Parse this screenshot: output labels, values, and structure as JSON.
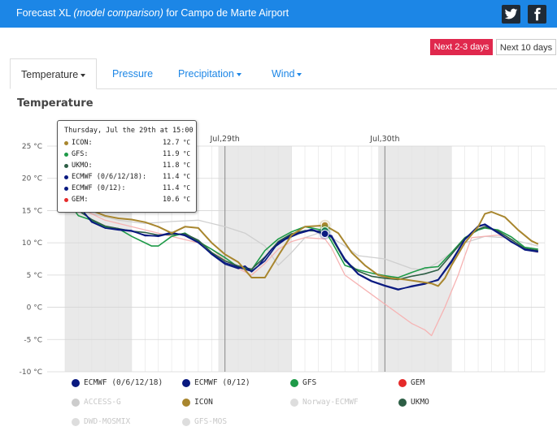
{
  "header": {
    "title_prefix": "Forecast XL ",
    "title_italic": "(model comparison)",
    "title_suffix": " for Campo de Marte Airport"
  },
  "range_buttons": [
    "Next 2-3 days",
    "Next 10 days"
  ],
  "tabs": [
    {
      "label": "Temperature",
      "dropdown": true,
      "active": true
    },
    {
      "label": "Pressure",
      "dropdown": false,
      "active": false
    },
    {
      "label": "Precipitation",
      "dropdown": true,
      "active": false
    },
    {
      "label": "Wind",
      "dropdown": true,
      "active": false
    }
  ],
  "chart_title": "Temperature",
  "tooltip": {
    "header": "Thursday, Jul the 29th at 15:00",
    "rows": [
      {
        "name": "ICON:",
        "value": "12.7",
        "unit": "°C",
        "color": "#a8862e"
      },
      {
        "name": "GFS:",
        "value": "11.9",
        "unit": "°C",
        "color": "#1e9a48"
      },
      {
        "name": "UKMO:",
        "value": "11.8",
        "unit": "°C",
        "color": "#2d5e45"
      },
      {
        "name": "ECMWF (0/6/12/18):",
        "value": "11.4",
        "unit": "°C",
        "color": "#0a1a80"
      },
      {
        "name": "ECMWF (0/12):",
        "value": "11.4",
        "unit": "°C",
        "color": "#0a1a80"
      },
      {
        "name": "GEM:",
        "value": "10.6",
        "unit": "°C",
        "color": "#e52a2a"
      }
    ]
  },
  "chart_data": {
    "type": "line",
    "title": "Temperature",
    "y_unit": "°C",
    "ylim": [
      -10,
      25
    ],
    "y_ticks": [
      "25 °C",
      "20 °C",
      "15 °C",
      "10 °C",
      "5 °C",
      "0 °C",
      "-5 °C",
      "-10 °C"
    ],
    "y_tick_values": [
      25,
      20,
      15,
      10,
      5,
      0,
      -5,
      -10
    ],
    "x_unit": "hours",
    "xlim": [
      0,
      72
    ],
    "x_ticks": [
      {
        "label": "Jul,29th",
        "x": 24
      },
      {
        "label": "Jul,30th",
        "x": 48
      }
    ],
    "hover_x": 39,
    "series": [
      {
        "name": "ECMWF (0/6/12/18)",
        "color": "#0a1a80",
        "width": 1.6,
        "visible": true,
        "points": [
          [
            0,
            17.5
          ],
          [
            2,
            15.7
          ],
          [
            4,
            13.3
          ],
          [
            6,
            12.3
          ],
          [
            8,
            12
          ],
          [
            10,
            11.8
          ],
          [
            12,
            11.2
          ],
          [
            14,
            11
          ],
          [
            16,
            11.5
          ],
          [
            18,
            11.2
          ],
          [
            20,
            10.1
          ],
          [
            22,
            8.2
          ],
          [
            24,
            6.7
          ],
          [
            26,
            6
          ],
          [
            27,
            6.4
          ],
          [
            28,
            5.5
          ],
          [
            29,
            6.4
          ],
          [
            31,
            9
          ],
          [
            33,
            10.5
          ],
          [
            35,
            11.4
          ],
          [
            37,
            12
          ],
          [
            38,
            11.6
          ],
          [
            39,
            11.4
          ],
          [
            40,
            11.1
          ],
          [
            42,
            7.3
          ],
          [
            44,
            5.1
          ],
          [
            46,
            4
          ],
          [
            48,
            3.3
          ],
          [
            50,
            2.7
          ],
          [
            52,
            3.3
          ],
          [
            54,
            3.7
          ],
          [
            56,
            4.2
          ],
          [
            58,
            7
          ],
          [
            60,
            10.5
          ],
          [
            62,
            12.5
          ],
          [
            63,
            12.8
          ],
          [
            65,
            11.5
          ],
          [
            67,
            10.2
          ],
          [
            69,
            8.9
          ],
          [
            71,
            8.6
          ]
        ]
      },
      {
        "name": "ECMWF (0/12)",
        "color": "#0a1a80",
        "width": 1.6,
        "visible": true,
        "points": [
          [
            0,
            17.4
          ],
          [
            2,
            15.8
          ],
          [
            4,
            13.2
          ],
          [
            6,
            12.3
          ],
          [
            8,
            12.1
          ],
          [
            10,
            11.9
          ],
          [
            12,
            11.1
          ],
          [
            14,
            11.1
          ],
          [
            16,
            11.6
          ],
          [
            18,
            11.1
          ],
          [
            20,
            10
          ],
          [
            22,
            8.3
          ],
          [
            24,
            6.9
          ],
          [
            26,
            6.2
          ],
          [
            28,
            5.6
          ],
          [
            30,
            7.2
          ],
          [
            32,
            10
          ],
          [
            34,
            11.2
          ],
          [
            36,
            11.8
          ],
          [
            37,
            12.1
          ],
          [
            39,
            11.4
          ],
          [
            40,
            10.9
          ],
          [
            42,
            7.5
          ],
          [
            44,
            5.2
          ],
          [
            46,
            4.1
          ],
          [
            48,
            3.4
          ],
          [
            50,
            2.8
          ],
          [
            52,
            3.2
          ],
          [
            54,
            3.6
          ],
          [
            56,
            4.3
          ],
          [
            58,
            7.2
          ],
          [
            60,
            10.6
          ],
          [
            62,
            12.6
          ],
          [
            63,
            12.9
          ],
          [
            65,
            11.6
          ],
          [
            67,
            10.1
          ],
          [
            69,
            9
          ],
          [
            71,
            8.7
          ]
        ]
      },
      {
        "name": "GFS",
        "color": "#1e9a48",
        "width": 1.6,
        "visible": true,
        "points": [
          [
            0,
            17
          ],
          [
            2,
            14.2
          ],
          [
            4,
            13.5
          ],
          [
            6,
            12.5
          ],
          [
            8,
            12.2
          ],
          [
            10,
            11
          ],
          [
            12,
            10
          ],
          [
            13,
            9.5
          ],
          [
            14,
            9.5
          ],
          [
            16,
            11
          ],
          [
            18,
            11.5
          ],
          [
            20,
            10.2
          ],
          [
            22,
            9
          ],
          [
            24,
            7.7
          ],
          [
            26,
            6.2
          ],
          [
            28,
            5.8
          ],
          [
            30,
            8.8
          ],
          [
            32,
            10.6
          ],
          [
            34,
            11.7
          ],
          [
            36,
            12.5
          ],
          [
            39,
            11.9
          ],
          [
            40,
            10.2
          ],
          [
            42,
            6.5
          ],
          [
            44,
            5.8
          ],
          [
            46,
            5.3
          ],
          [
            48,
            4.9
          ],
          [
            50,
            4.6
          ],
          [
            52,
            5.4
          ],
          [
            54,
            6.1
          ],
          [
            56,
            6.3
          ],
          [
            58,
            8.5
          ],
          [
            60,
            10.8
          ],
          [
            62,
            12
          ],
          [
            63,
            12.3
          ],
          [
            65,
            12
          ],
          [
            67,
            10.9
          ],
          [
            69,
            9.3
          ],
          [
            71,
            9
          ]
        ]
      },
      {
        "name": "GEM",
        "color": "#f6b3b3",
        "width": 1.3,
        "visible": true,
        "points": [
          [
            0,
            16.8
          ],
          [
            2,
            15.5
          ],
          [
            4,
            14.5
          ],
          [
            6,
            13.5
          ],
          [
            8,
            13
          ],
          [
            10,
            12.5
          ],
          [
            12,
            12
          ],
          [
            14,
            11.5
          ],
          [
            16,
            11
          ],
          [
            18,
            10.5
          ],
          [
            20,
            10
          ],
          [
            22,
            9
          ],
          [
            24,
            7.3
          ],
          [
            26,
            6
          ],
          [
            28,
            5
          ],
          [
            30,
            6.8
          ],
          [
            32,
            9
          ],
          [
            34,
            10.2
          ],
          [
            36,
            10.8
          ],
          [
            39,
            10.6
          ],
          [
            40,
            9.2
          ],
          [
            42,
            5
          ],
          [
            44,
            3.5
          ],
          [
            46,
            2
          ],
          [
            48,
            0.5
          ],
          [
            50,
            -1
          ],
          [
            52,
            -2.5
          ],
          [
            54,
            -3.5
          ],
          [
            55,
            -4.4
          ],
          [
            57,
            0
          ],
          [
            59,
            5
          ],
          [
            60,
            8
          ],
          [
            61,
            10.8
          ],
          [
            63,
            11
          ],
          [
            65,
            11.2
          ],
          [
            67,
            10.5
          ],
          [
            69,
            9
          ],
          [
            71,
            8.5
          ]
        ]
      },
      {
        "name": "ACCESS-G",
        "color": "#cfcfcf",
        "width": 1.3,
        "visible": true,
        "points": [
          [
            0,
            16.5
          ],
          [
            4,
            14.5
          ],
          [
            8,
            13.5
          ],
          [
            12,
            13
          ],
          [
            16,
            13.3
          ],
          [
            20,
            13.5
          ],
          [
            24,
            12.5
          ],
          [
            27,
            11.5
          ],
          [
            30,
            9.5
          ],
          [
            32,
            6.5
          ],
          [
            34,
            8.5
          ],
          [
            36,
            10.8
          ],
          [
            38,
            11.5
          ],
          [
            40,
            10.8
          ],
          [
            42,
            9.5
          ],
          [
            44,
            8
          ],
          [
            48,
            7.5
          ],
          [
            52,
            6
          ],
          [
            54,
            5.8
          ],
          [
            56,
            7
          ],
          [
            58,
            8.5
          ],
          [
            60,
            10
          ],
          [
            63,
            11
          ],
          [
            66,
            10.8
          ],
          [
            69,
            10
          ],
          [
            71,
            9.5
          ]
        ]
      },
      {
        "name": "ICON",
        "color": "#a8862e",
        "width": 2,
        "visible": true,
        "points": [
          [
            0,
            17.5
          ],
          [
            2,
            16.2
          ],
          [
            4,
            15
          ],
          [
            6,
            14.2
          ],
          [
            8,
            13.8
          ],
          [
            10,
            13.6
          ],
          [
            12,
            13.2
          ],
          [
            14,
            12.5
          ],
          [
            16,
            11.5
          ],
          [
            18,
            12.5
          ],
          [
            20,
            12.3
          ],
          [
            22,
            10
          ],
          [
            24,
            8.2
          ],
          [
            26,
            7
          ],
          [
            28,
            4.6
          ],
          [
            30,
            4.6
          ],
          [
            32,
            8
          ],
          [
            34,
            11.2
          ],
          [
            36,
            12.5
          ],
          [
            39,
            12.7
          ],
          [
            41,
            11.5
          ],
          [
            43,
            8.5
          ],
          [
            45,
            6.5
          ],
          [
            47,
            5
          ],
          [
            49,
            4.5
          ],
          [
            51,
            4.3
          ],
          [
            53,
            4
          ],
          [
            55,
            3.7
          ],
          [
            56,
            3.3
          ],
          [
            57,
            4.5
          ],
          [
            58,
            6.5
          ],
          [
            60,
            10
          ],
          [
            62,
            12.5
          ],
          [
            63,
            14.5
          ],
          [
            64,
            14.8
          ],
          [
            66,
            14
          ],
          [
            68,
            12
          ],
          [
            70,
            10.3
          ],
          [
            71,
            9.8
          ]
        ]
      },
      {
        "name": "Norway-ECMWF",
        "color": "#dddddd",
        "width": 1.2,
        "visible": false,
        "points": []
      },
      {
        "name": "UKMO",
        "color": "#2d5e45",
        "width": 1.6,
        "visible": true,
        "points": [
          [
            0,
            17.2
          ],
          [
            2,
            15
          ],
          [
            4,
            13.6
          ],
          [
            6,
            12.6
          ],
          [
            8,
            12.2
          ],
          [
            10,
            11.8
          ],
          [
            12,
            11.6
          ],
          [
            14,
            11.2
          ],
          [
            16,
            11.3
          ],
          [
            18,
            11.4
          ],
          [
            20,
            10.4
          ],
          [
            22,
            8.5
          ],
          [
            24,
            7.2
          ],
          [
            26,
            6.4
          ],
          [
            28,
            5.9
          ],
          [
            30,
            7.8
          ],
          [
            32,
            10.2
          ],
          [
            34,
            11.4
          ],
          [
            36,
            11.9
          ],
          [
            39,
            11.8
          ],
          [
            40,
            10.8
          ],
          [
            42,
            7.2
          ],
          [
            44,
            5.6
          ],
          [
            46,
            4.8
          ],
          [
            48,
            4.5
          ],
          [
            50,
            4.3
          ],
          [
            52,
            4.8
          ],
          [
            54,
            5.2
          ],
          [
            56,
            5.8
          ],
          [
            58,
            8.2
          ],
          [
            60,
            10.7
          ],
          [
            62,
            12.1
          ],
          [
            63,
            12.5
          ],
          [
            65,
            11.8
          ],
          [
            67,
            10.5
          ],
          [
            69,
            9.1
          ],
          [
            71,
            8.8
          ]
        ]
      },
      {
        "name": "DWD-MOSMIX",
        "color": "#dddddd",
        "width": 1.2,
        "visible": false,
        "points": []
      },
      {
        "name": "GFS-MOS",
        "color": "#dddddd",
        "width": 1.2,
        "visible": false,
        "points": []
      }
    ]
  },
  "legend": [
    {
      "label": "ECMWF (0/6/12/18)",
      "color": "#0a1a80",
      "enabled": true
    },
    {
      "label": "ECMWF (0/12)",
      "color": "#0a1a80",
      "enabled": true
    },
    {
      "label": "GFS",
      "color": "#1e9a48",
      "enabled": true
    },
    {
      "label": "GEM",
      "color": "#e52a2a",
      "enabled": true
    },
    {
      "label": "ACCESS-G",
      "color": "#cccccc",
      "enabled": false
    },
    {
      "label": "ICON",
      "color": "#a8862e",
      "enabled": true
    },
    {
      "label": "Norway-ECMWF",
      "color": "#dddddd",
      "enabled": false
    },
    {
      "label": "UKMO",
      "color": "#2d5e45",
      "enabled": true
    },
    {
      "label": "DWD-MOSMIX",
      "color": "#dddddd",
      "enabled": false
    },
    {
      "label": "GFS-MOS",
      "color": "#dddddd",
      "enabled": false
    }
  ]
}
